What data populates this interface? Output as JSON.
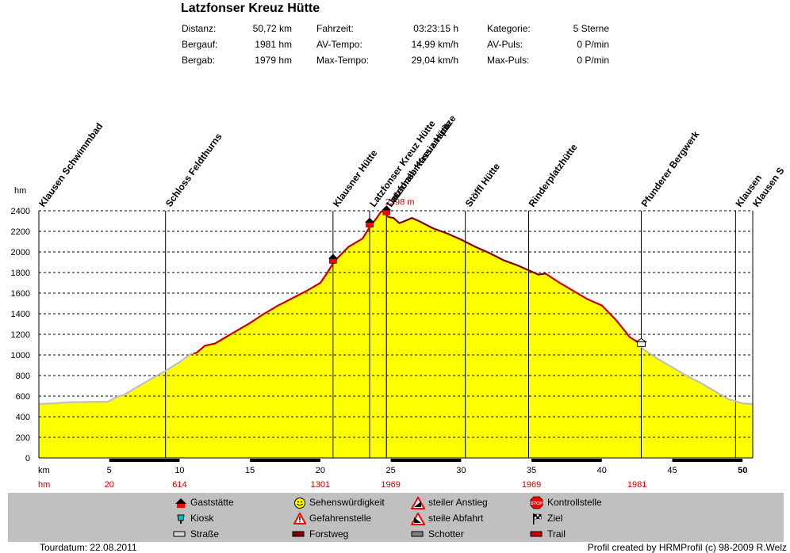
{
  "title": "Latzfonser Kreuz Hütte",
  "stats": [
    {
      "label": "Distanz:",
      "value": "50,72 km"
    },
    {
      "label": "Bergauf:",
      "value": "1981 hm"
    },
    {
      "label": "Bergab:",
      "value": "1979 hm"
    },
    {
      "label": "Fahrzeit:",
      "value": "03:23:15 h"
    },
    {
      "label": "AV-Tempo:",
      "value": "14,99 km/h"
    },
    {
      "label": "Max-Tempo:",
      "value": "29,04 km/h"
    },
    {
      "label": "Kategorie:",
      "value": "5 Sterne"
    },
    {
      "label": "AV-Puls:",
      "value": "0 P/min"
    },
    {
      "label": "Max-Puls:",
      "value": "0 P/min"
    }
  ],
  "footer": {
    "date": "Tourdatum: 22.08.2011",
    "credit": "Profil created by HRMProfil (c) 98-2009 R.Welz"
  },
  "legend": [
    {
      "icon": "gaststaette-icon",
      "label": "Gaststätte"
    },
    {
      "icon": "kiosk-icon",
      "label": "Kiosk"
    },
    {
      "icon": "strasse-icon",
      "label": "Straße"
    },
    {
      "icon": "sehenswuerdigkeit-icon",
      "label": "Sehenswürdigkeit"
    },
    {
      "icon": "gefahrenstelle-icon",
      "label": "Gefahrenstelle"
    },
    {
      "icon": "forstweg-icon",
      "label": "Forstweg"
    },
    {
      "icon": "steiler-anstieg-icon",
      "label": "steiler Anstieg"
    },
    {
      "icon": "steile-abfahrt-icon",
      "label": "steile Abfahrt"
    },
    {
      "icon": "schotter-icon",
      "label": "Schotter"
    },
    {
      "icon": "kontrollstelle-icon",
      "label": "Kontrollstelle"
    },
    {
      "icon": "ziel-icon",
      "label": "Ziel"
    },
    {
      "icon": "trail-icon",
      "label": "Trail"
    }
  ],
  "colors": {
    "fill": "#ffff00",
    "road": "#c0c0c0",
    "trail": "#cc0000",
    "forest": "#800000",
    "grid": "#000000"
  },
  "chart_data": {
    "type": "area",
    "xlabel": "km",
    "ylabel": "hm",
    "xlim": [
      0,
      50.72
    ],
    "ylim": [
      0,
      2400
    ],
    "x_ticks": [
      5,
      10,
      15,
      20,
      25,
      30,
      35,
      40,
      45,
      50
    ],
    "x_tick_labels": [
      "5",
      "10",
      "15",
      "20",
      "25",
      "30",
      "35",
      "40",
      "45",
      "50"
    ],
    "y_ticks": [
      0,
      200,
      400,
      600,
      800,
      1000,
      1200,
      1400,
      1600,
      1800,
      2000,
      2200,
      2400
    ],
    "y_tick_labels": [
      "0",
      "200",
      "400",
      "600",
      "800",
      "1000",
      "1200",
      "1400",
      "1600",
      "1800",
      "2000",
      "2200",
      "2400"
    ],
    "hm_row_label": "hm",
    "hm_row": [
      {
        "km": 5,
        "value": "20"
      },
      {
        "km": 10,
        "value": "614"
      },
      {
        "km": 20,
        "value": "1301"
      },
      {
        "km": 25,
        "value": "1969"
      },
      {
        "km": 35,
        "value": "1969"
      },
      {
        "km": 42.5,
        "value": "1981"
      }
    ],
    "max_label": "2398 m",
    "max_point": [
      24.5,
      2398
    ],
    "profile": [
      [
        0,
        525
      ],
      [
        1,
        530
      ],
      [
        2,
        540
      ],
      [
        3,
        542
      ],
      [
        4,
        545
      ],
      [
        4.9,
        545
      ],
      [
        5.5,
        590
      ],
      [
        6,
        610
      ],
      [
        7,
        690
      ],
      [
        8,
        770
      ],
      [
        9,
        845
      ],
      [
        10,
        930
      ],
      [
        10.8,
        1010
      ],
      [
        11.2,
        1020
      ],
      [
        11.8,
        1090
      ],
      [
        12.5,
        1110
      ],
      [
        13,
        1150
      ],
      [
        14,
        1230
      ],
      [
        15,
        1310
      ],
      [
        16,
        1400
      ],
      [
        17,
        1480
      ],
      [
        18,
        1550
      ],
      [
        19,
        1620
      ],
      [
        20,
        1700
      ],
      [
        20.5,
        1800
      ],
      [
        21,
        1910
      ],
      [
        22,
        2050
      ],
      [
        22.5,
        2090
      ],
      [
        23,
        2130
      ],
      [
        23.5,
        2240
      ],
      [
        24,
        2330
      ],
      [
        24.3,
        2390
      ],
      [
        24.5,
        2398
      ],
      [
        24.8,
        2340
      ],
      [
        25.2,
        2330
      ],
      [
        25.6,
        2280
      ],
      [
        26,
        2300
      ],
      [
        26.5,
        2330
      ],
      [
        27,
        2300
      ],
      [
        28,
        2230
      ],
      [
        29,
        2180
      ],
      [
        30,
        2120
      ],
      [
        31,
        2050
      ],
      [
        32,
        1990
      ],
      [
        33,
        1920
      ],
      [
        34,
        1870
      ],
      [
        35,
        1810
      ],
      [
        35.5,
        1780
      ],
      [
        36,
        1790
      ],
      [
        37,
        1700
      ],
      [
        38,
        1620
      ],
      [
        39,
        1540
      ],
      [
        40,
        1480
      ],
      [
        41,
        1340
      ],
      [
        42,
        1170
      ],
      [
        42.5,
        1130
      ],
      [
        43,
        1050
      ],
      [
        44,
        960
      ],
      [
        45,
        880
      ],
      [
        46,
        800
      ],
      [
        47,
        730
      ],
      [
        48,
        650
      ],
      [
        49,
        570
      ],
      [
        50,
        530
      ],
      [
        50.72,
        525
      ]
    ],
    "segments": [
      {
        "type": "Straße",
        "from": 0,
        "to": 11
      },
      {
        "type": "Trail",
        "from": 11,
        "to": 24.8
      },
      {
        "type": "Forstweg",
        "from": 24.8,
        "to": 36
      },
      {
        "type": "Trail",
        "from": 36,
        "to": 42.6
      },
      {
        "type": "Straße",
        "from": 42.6,
        "to": 50.72
      }
    ],
    "surface_bars": [
      {
        "from": 5,
        "to": 10
      },
      {
        "from": 15,
        "to": 20
      },
      {
        "from": 25,
        "to": 30
      },
      {
        "from": 35,
        "to": 40
      },
      {
        "from": 45,
        "to": 50
      }
    ],
    "waypoints": [
      {
        "km": 0,
        "name": "Klausen Schwimmbad",
        "icon": ""
      },
      {
        "km": 9,
        "name": "Schloss Feldthurns",
        "icon": ""
      },
      {
        "km": 20.9,
        "name": "Klausner Hütte",
        "icon": "gaststaette"
      },
      {
        "km": 23.5,
        "name": "Latzfonser Kreuz Hütte",
        "icon": "gaststaette"
      },
      {
        "km": 24.7,
        "name": "Unterhalb Kassianspitze",
        "icon": "gaststaette"
      },
      {
        "km": 24.7,
        "name": "Latzfonser Kreuz Hütte",
        "icon": ""
      },
      {
        "km": 30.3,
        "name": "Stöffl Hütte",
        "icon": ""
      },
      {
        "km": 34.8,
        "name": "Rinderplatzhütte",
        "icon": ""
      },
      {
        "km": 42.8,
        "name": "Pfunderer Bergwerk",
        "icon": "sehenswuerdigkeit"
      },
      {
        "km": 49.5,
        "name": "Klausen",
        "icon": ""
      },
      {
        "km": 50.72,
        "name": "Klausen S",
        "icon": ""
      }
    ]
  }
}
